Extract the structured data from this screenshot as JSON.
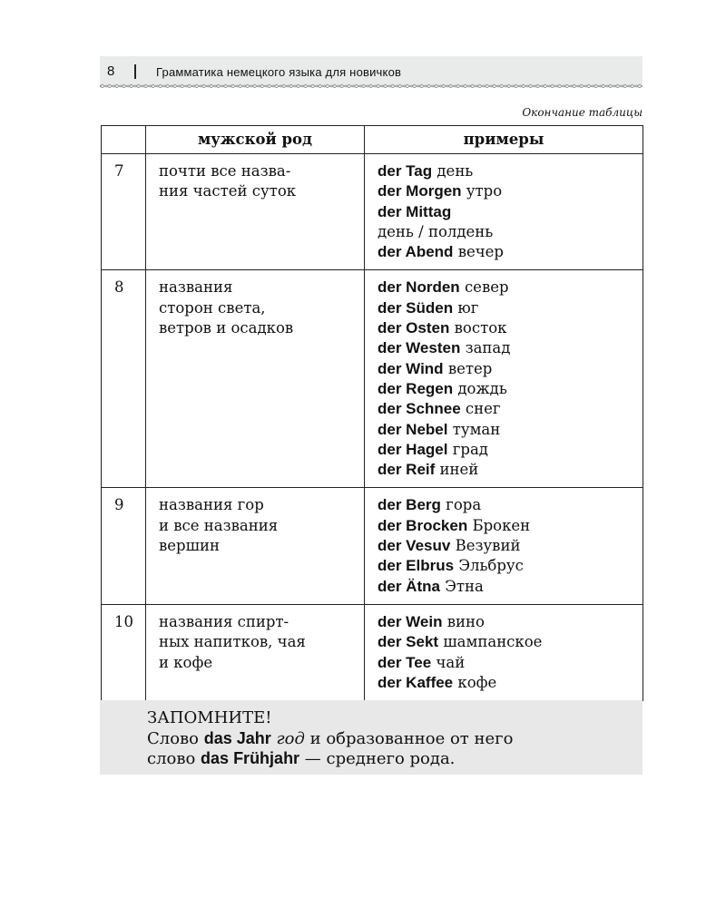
{
  "header": {
    "page_number": "8",
    "title": "Грамматика немецкого языка для новичков"
  },
  "caption": "Окончание таблицы",
  "table": {
    "headers": [
      "мужской род",
      "примеры"
    ],
    "rows": [
      {
        "number": "7",
        "description": [
          "почти все назва-",
          "ния частей суток"
        ],
        "examples": [
          {
            "de": "der Tag",
            "ru": "день"
          },
          {
            "de": "der Morgen",
            "ru": "утро"
          },
          {
            "de": "der Mittag"
          },
          {
            "ru": "день / полдень"
          },
          {
            "de": "der Abend",
            "ru": "вечер"
          }
        ]
      },
      {
        "number": "8",
        "description": [
          "названия",
          "сторон света,",
          "ветров и осадков"
        ],
        "examples": [
          {
            "de": "der Norden",
            "ru": "север"
          },
          {
            "de": "der Süden",
            "ru": "юг"
          },
          {
            "de": "der Osten",
            "ru": "восток"
          },
          {
            "de": "der Westen",
            "ru": "запад"
          },
          {
            "de": "der Wind",
            "ru": "ветер"
          },
          {
            "de": "der Regen",
            "ru": "дождь"
          },
          {
            "de": "der Schnee",
            "ru": "снег"
          },
          {
            "de": "der Nebel",
            "ru": "туман"
          },
          {
            "de": "der Hagel",
            "ru": "град"
          },
          {
            "de": "der Reif",
            "ru": "иней"
          }
        ]
      },
      {
        "number": "9",
        "description": [
          "названия гор",
          "и все названия",
          "вершин"
        ],
        "examples": [
          {
            "de": "der Berg",
            "ru": "гора"
          },
          {
            "de": "der Brocken",
            "ru": "Брокен"
          },
          {
            "de": "der Vesuv",
            "ru": "Везувий"
          },
          {
            "de": "der Elbrus",
            "ru": "Эльбрус"
          },
          {
            "de": "der Ätna",
            "ru": "Этна"
          }
        ]
      },
      {
        "number": "10",
        "description": [
          "названия спирт-",
          "ных напитков, чая",
          "и кофе"
        ],
        "examples": [
          {
            "de": "der Wein",
            "ru": "вино"
          },
          {
            "de": "der Sekt",
            "ru": "шампанское"
          },
          {
            "de": "der Tee",
            "ru": "чай"
          },
          {
            "de": "der Kaffee",
            "ru": "кофе"
          }
        ]
      }
    ]
  },
  "note": {
    "title": "ЗАПОМНИТЕ!",
    "lines": [
      [
        {
          "text": "Слово ",
          "style": "normal"
        },
        {
          "text": "das Jahr",
          "style": "bold"
        },
        {
          "text": " год",
          "style": "italic"
        },
        {
          "text": " и образованное от него",
          "style": "normal"
        }
      ],
      [
        {
          "text": "слово ",
          "style": "normal"
        },
        {
          "text": "das Frühjahr",
          "style": "bold"
        },
        {
          "text": " — среднего рода.",
          "style": "normal"
        }
      ]
    ]
  }
}
